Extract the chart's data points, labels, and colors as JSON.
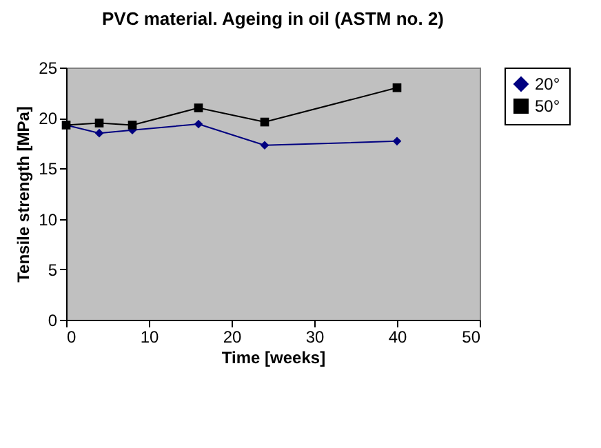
{
  "chart_data": {
    "type": "line",
    "title": "PVC material. Ageing in oil (ASTM no. 2)",
    "xlabel": "Time [weeks]",
    "ylabel": "Tensile strength [MPa]",
    "x": [
      0,
      4,
      8,
      16,
      24,
      40
    ],
    "series": [
      {
        "name": "20°",
        "color": "#000080",
        "marker": "diamond",
        "values": [
          19.3,
          18.5,
          18.8,
          19.4,
          17.3,
          17.7
        ]
      },
      {
        "name": "50°",
        "color": "#000000",
        "marker": "square",
        "values": [
          19.3,
          19.5,
          19.3,
          21.0,
          19.6,
          23.0
        ]
      }
    ],
    "xlim": [
      0,
      50
    ],
    "xticks": [
      0,
      10,
      20,
      30,
      40,
      50
    ],
    "ylim": [
      0,
      25
    ],
    "yticks": [
      0,
      5,
      10,
      15,
      20,
      25
    ],
    "grid": false,
    "legend": "right"
  }
}
